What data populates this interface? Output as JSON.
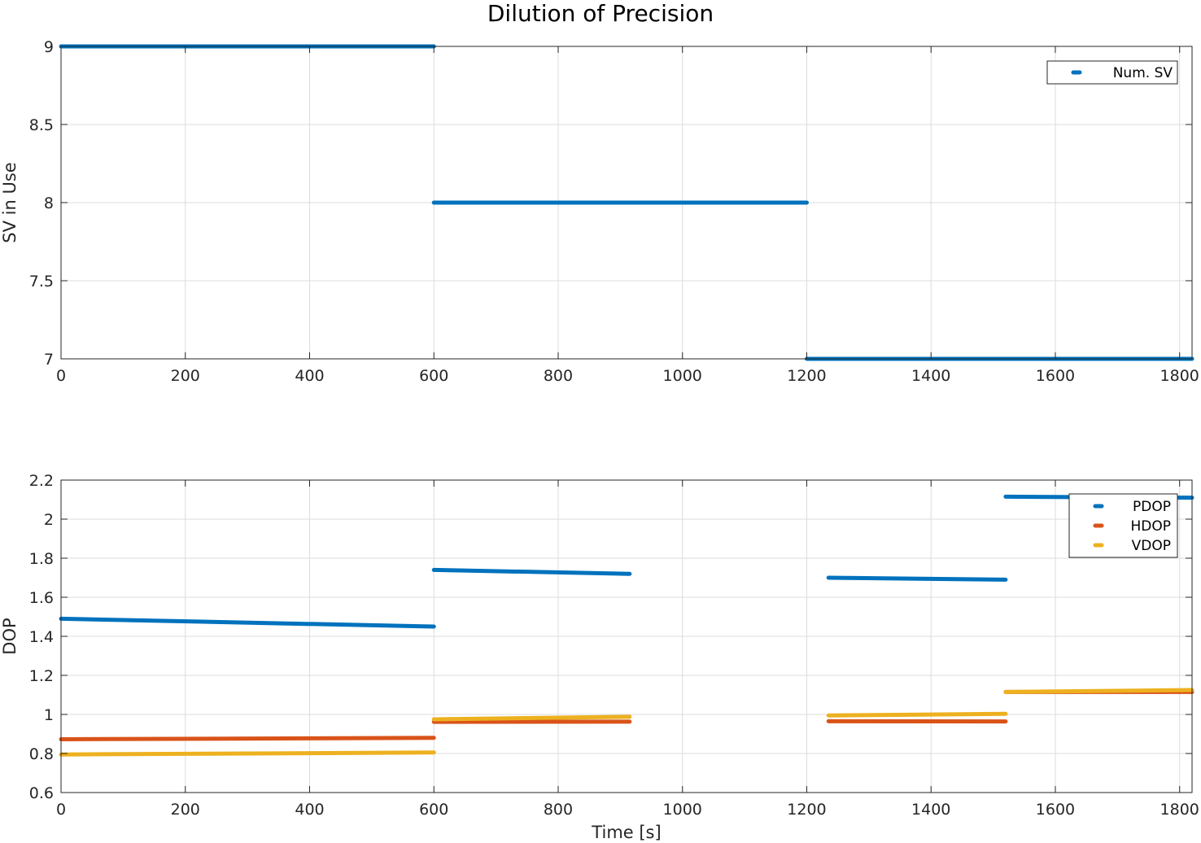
{
  "figure": {
    "title": "Dilution of Precision"
  },
  "chart_data": [
    {
      "type": "scatter",
      "ylabel": "SV in Use",
      "xlabel": "",
      "xlim": [
        0,
        1820
      ],
      "ylim": [
        7,
        9
      ],
      "x_ticks": [
        0,
        200,
        400,
        600,
        800,
        1000,
        1200,
        1400,
        1600,
        1800
      ],
      "y_ticks": [
        7,
        7.5,
        8,
        8.5,
        9
      ],
      "y_tick_labels": [
        "7",
        "7.5",
        "8",
        "8.5",
        "9"
      ],
      "grid": true,
      "legend_position": "top-right",
      "series": [
        {
          "name": "Num. SV",
          "color": "#0072BD",
          "segments": [
            {
              "x": [
                0,
                600
              ],
              "y": [
                9,
                9
              ]
            },
            {
              "x": [
                600,
                1200
              ],
              "y": [
                8,
                8
              ]
            },
            {
              "x": [
                1200,
                1820
              ],
              "y": [
                7,
                7
              ]
            }
          ]
        }
      ]
    },
    {
      "type": "scatter",
      "ylabel": "DOP",
      "xlabel": "Time [s]",
      "xlim": [
        0,
        1820
      ],
      "ylim": [
        0.6,
        2.2
      ],
      "x_ticks": [
        0,
        200,
        400,
        600,
        800,
        1000,
        1200,
        1400,
        1600,
        1800
      ],
      "y_ticks": [
        0.6,
        0.8,
        1,
        1.2,
        1.4,
        1.6,
        1.8,
        2,
        2.2
      ],
      "y_tick_labels": [
        "0.6",
        "0.8",
        "1",
        "1.2",
        "1.4",
        "1.6",
        "1.8",
        "2",
        "2.2"
      ],
      "grid": true,
      "legend_position": "top-right",
      "series": [
        {
          "name": "PDOP",
          "color": "#0072BD",
          "segments": [
            {
              "x": [
                0,
                600
              ],
              "y": [
                1.49,
                1.45
              ]
            },
            {
              "x": [
                600,
                915
              ],
              "y": [
                1.74,
                1.72
              ]
            },
            {
              "x": [
                1235,
                1520
              ],
              "y": [
                1.7,
                1.69
              ]
            },
            {
              "x": [
                1520,
                1820
              ],
              "y": [
                2.115,
                2.11
              ]
            }
          ]
        },
        {
          "name": "HDOP",
          "color": "#D95319",
          "segments": [
            {
              "x": [
                0,
                600
              ],
              "y": [
                0.873,
                0.88
              ]
            },
            {
              "x": [
                600,
                915
              ],
              "y": [
                0.962,
                0.963
              ]
            },
            {
              "x": [
                1235,
                1520
              ],
              "y": [
                0.965,
                0.964
              ]
            },
            {
              "x": [
                1520,
                1820
              ],
              "y": [
                1.115,
                1.115
              ]
            }
          ]
        },
        {
          "name": "VDOP",
          "color": "#EDB120",
          "segments": [
            {
              "x": [
                0,
                600
              ],
              "y": [
                0.795,
                0.805
              ]
            },
            {
              "x": [
                600,
                915
              ],
              "y": [
                0.975,
                0.988
              ]
            },
            {
              "x": [
                1235,
                1520
              ],
              "y": [
                0.995,
                1.003
              ]
            },
            {
              "x": [
                1520,
                1820
              ],
              "y": [
                1.115,
                1.125
              ]
            }
          ]
        }
      ]
    }
  ]
}
